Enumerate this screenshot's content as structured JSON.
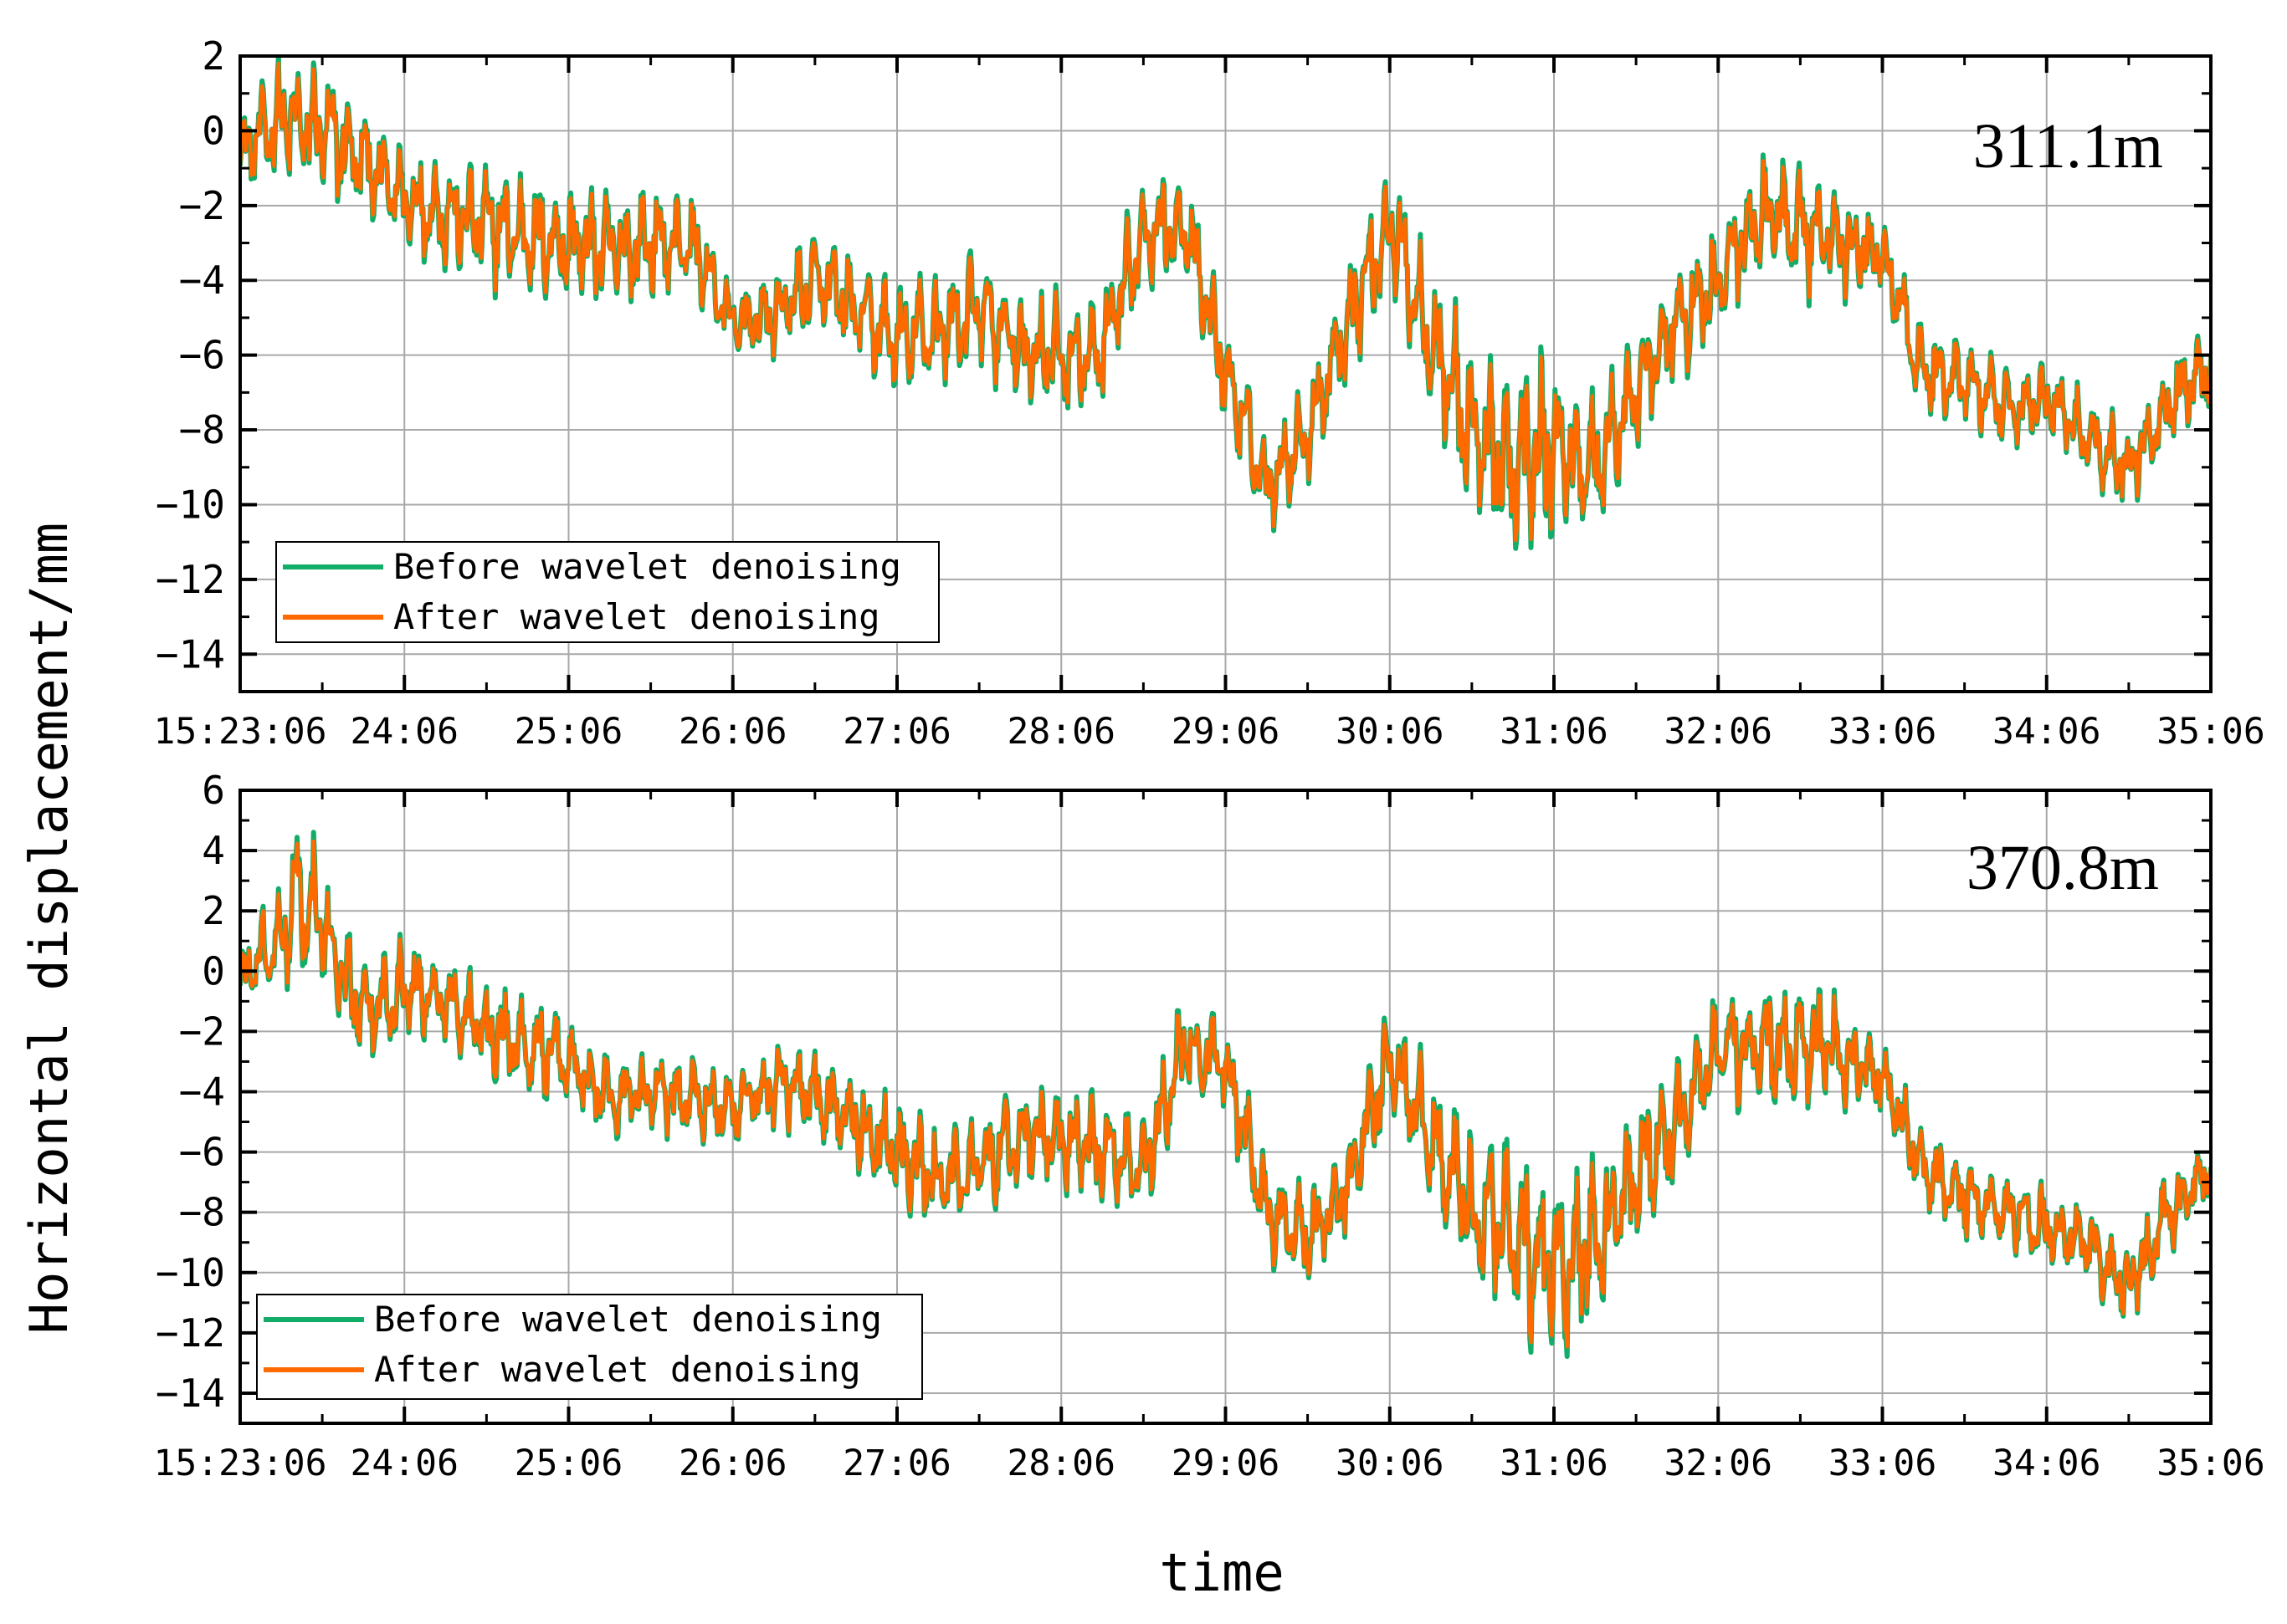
{
  "figure": {
    "ylabel": "Horizontal displacement/mm",
    "xlabel": "time"
  },
  "colors": {
    "before": "#12ad68",
    "after": "#ff6a00"
  },
  "chart_data": [
    {
      "type": "line",
      "annotation": "311.1m",
      "xlabel": "",
      "ylabel": "Horizontal displacement/mm",
      "x_unit": "minutes elapsed since 15:23:06",
      "xlim": [
        0,
        12
      ],
      "ylim": [
        -15,
        2
      ],
      "yticks": [
        2,
        0,
        -2,
        -4,
        -6,
        -8,
        -10,
        -12,
        -14
      ],
      "xticks": [
        0,
        1,
        2,
        3,
        4,
        5,
        6,
        7,
        8,
        9,
        10,
        11,
        12
      ],
      "xtick_labels": [
        "15:23:06",
        "24:06",
        "25:06",
        "26:06",
        "27:06",
        "28:06",
        "29:06",
        "30:06",
        "31:06",
        "32:06",
        "33:06",
        "34:06",
        "35:06"
      ],
      "legend": [
        "Before wavelet denoising",
        "After wavelet denoising"
      ],
      "legend_position": "bottom-left",
      "series": [
        {
          "name": "Before wavelet denoising",
          "x": [
            0,
            0.25,
            0.5,
            0.75,
            1,
            1.25,
            1.5,
            1.75,
            2,
            2.25,
            2.5,
            2.75,
            3,
            3.25,
            3.5,
            3.75,
            4,
            4.25,
            4.5,
            4.75,
            5,
            5.25,
            5.5,
            5.75,
            6,
            6.25,
            6.5,
            6.75,
            7,
            7.25,
            7.5,
            7.75,
            8,
            8.25,
            8.5,
            8.75,
            9,
            9.25,
            9.5,
            9.75,
            10,
            10.25,
            10.5,
            10.75,
            11,
            11.25,
            11.5,
            11.75,
            12
          ],
          "values": [
            -0.5,
            0.3,
            0,
            -0.8,
            -1.8,
            -2.2,
            -2.5,
            -2.8,
            -3.0,
            -3.2,
            -3.0,
            -3.0,
            -5.2,
            -4.9,
            -4.0,
            -4.8,
            -5.6,
            -5.3,
            -4.8,
            -5.8,
            -6.0,
            -6.0,
            -2.6,
            -2.5,
            -6.5,
            -9.5,
            -8.0,
            -5.0,
            -2.5,
            -5.5,
            -8.0,
            -9.0,
            -8.5,
            -9.0,
            -7.0,
            -5.0,
            -4.0,
            -2.2,
            -2.6,
            -3.0,
            -3.4,
            -6.5,
            -6.6,
            -7.5,
            -7.2,
            -8.2,
            -9.0,
            -7.2,
            -6.3
          ],
          "amplitudes": [
            1.0,
            1.5,
            1.6,
            1.5,
            1.4,
            1.4,
            1.5,
            1.4,
            1.5,
            1.4,
            1.3,
            1.2,
            1.0,
            1.1,
            1.2,
            1.3,
            1.4,
            1.5,
            1.5,
            1.5,
            1.5,
            1.4,
            1.5,
            1.4,
            1.3,
            1.2,
            1.3,
            1.5,
            1.6,
            1.7,
            2.3,
            3.0,
            2.2,
            1.9,
            1.8,
            1.6,
            1.5,
            1.5,
            1.7,
            1.4,
            1.2,
            1.1,
            1.1,
            1.0,
            1.0,
            1.0,
            1.1,
            1.1,
            1.0
          ]
        },
        {
          "name": "After wavelet denoising",
          "x": [
            0,
            0.25,
            0.5,
            0.75,
            1,
            1.25,
            1.5,
            1.75,
            2,
            2.25,
            2.5,
            2.75,
            3,
            3.25,
            3.5,
            3.75,
            4,
            4.25,
            4.5,
            4.75,
            5,
            5.25,
            5.5,
            5.75,
            6,
            6.25,
            6.5,
            6.75,
            7,
            7.25,
            7.5,
            7.75,
            8,
            8.25,
            8.5,
            8.75,
            9,
            9.25,
            9.5,
            9.75,
            10,
            10.25,
            10.5,
            10.75,
            11,
            11.25,
            11.5,
            11.75,
            12
          ],
          "values": [
            -0.5,
            0.3,
            0,
            -0.8,
            -1.8,
            -2.2,
            -2.5,
            -2.8,
            -3.0,
            -3.2,
            -3.0,
            -3.0,
            -5.2,
            -4.9,
            -4.0,
            -4.8,
            -5.6,
            -5.3,
            -4.8,
            -5.8,
            -6.0,
            -6.0,
            -2.6,
            -2.5,
            -6.5,
            -9.5,
            -8.0,
            -5.0,
            -2.5,
            -5.5,
            -8.0,
            -9.0,
            -8.5,
            -9.0,
            -7.0,
            -5.0,
            -4.0,
            -2.2,
            -2.6,
            -3.0,
            -3.4,
            -6.5,
            -6.6,
            -7.5,
            -7.2,
            -8.2,
            -9.0,
            -7.2,
            -6.3
          ],
          "amplitudes": [
            0.9,
            1.35,
            1.45,
            1.35,
            1.25,
            1.25,
            1.35,
            1.25,
            1.35,
            1.25,
            1.2,
            1.1,
            0.9,
            1.0,
            1.1,
            1.2,
            1.25,
            1.35,
            1.35,
            1.35,
            1.35,
            1.25,
            1.35,
            1.25,
            1.2,
            1.1,
            1.2,
            1.35,
            1.45,
            1.55,
            2.1,
            2.7,
            2.0,
            1.7,
            1.6,
            1.45,
            1.35,
            1.35,
            1.5,
            1.25,
            1.1,
            1.0,
            1.0,
            0.9,
            0.9,
            0.9,
            1.0,
            1.0,
            0.9
          ]
        }
      ]
    },
    {
      "type": "line",
      "annotation": "370.8m",
      "xlabel": "time",
      "ylabel": "Horizontal displacement/mm",
      "x_unit": "minutes elapsed since 15:23:06",
      "xlim": [
        0,
        12
      ],
      "ylim": [
        -15,
        6
      ],
      "yticks": [
        6,
        4,
        2,
        0,
        -2,
        -4,
        -6,
        -8,
        -10,
        -12,
        -14
      ],
      "xticks": [
        0,
        1,
        2,
        3,
        4,
        5,
        6,
        7,
        8,
        9,
        10,
        11,
        12
      ],
      "xtick_labels": [
        "15:23:06",
        "24:06",
        "25:06",
        "26:06",
        "27:06",
        "28:06",
        "29:06",
        "30:06",
        "31:06",
        "32:06",
        "33:06",
        "34:06",
        "35:06"
      ],
      "legend": [
        "Before wavelet denoising",
        "After wavelet denoising"
      ],
      "legend_position": "bottom-left",
      "series": [
        {
          "name": "Before wavelet denoising",
          "x": [
            0,
            0.25,
            0.35,
            0.5,
            0.75,
            1,
            1.25,
            1.5,
            1.75,
            2,
            2.25,
            2.5,
            2.75,
            3,
            3.25,
            3.5,
            3.75,
            4,
            4.25,
            4.5,
            4.75,
            5,
            5.25,
            5.5,
            5.75,
            6,
            6.25,
            6.5,
            6.75,
            7,
            7.25,
            7.5,
            7.75,
            8,
            8.25,
            8.5,
            8.75,
            9,
            9.25,
            9.5,
            9.75,
            10,
            10.25,
            10.5,
            10.75,
            11,
            11.25,
            11.5,
            11.75,
            12
          ],
          "values": [
            -0.3,
            1.0,
            2.5,
            1.5,
            -1.5,
            -0.5,
            -1.0,
            -2.0,
            -2.5,
            -3.0,
            -4.0,
            -4.0,
            -4.2,
            -4.5,
            -3.8,
            -4.0,
            -5.0,
            -6.0,
            -7.0,
            -6.5,
            -5.5,
            -5.5,
            -6.0,
            -6.5,
            -2.5,
            -3.0,
            -8.0,
            -9.0,
            -7.0,
            -3.0,
            -5.5,
            -8.0,
            -9.0,
            -10.0,
            -9.0,
            -7.0,
            -5.0,
            -2.5,
            -2.5,
            -2.5,
            -2.8,
            -3.5,
            -6.5,
            -7.5,
            -8.0,
            -8.5,
            -9.0,
            -10.5,
            -8.0,
            -6.5
          ],
          "amplitudes": [
            1.2,
            1.6,
            2.8,
            1.8,
            1.6,
            1.6,
            1.6,
            1.5,
            1.5,
            1.5,
            1.4,
            1.4,
            1.3,
            1.3,
            1.3,
            1.4,
            1.5,
            1.6,
            1.6,
            1.6,
            1.6,
            1.5,
            1.6,
            1.6,
            1.6,
            1.5,
            1.5,
            1.6,
            1.7,
            1.8,
            2.0,
            2.4,
            3.0,
            2.8,
            2.5,
            2.2,
            2.0,
            1.8,
            2.0,
            2.1,
            1.6,
            1.4,
            1.3,
            1.3,
            1.2,
            1.2,
            1.2,
            1.3,
            1.3,
            1.1
          ]
        },
        {
          "name": "After wavelet denoising",
          "x": [
            0,
            0.25,
            0.35,
            0.5,
            0.75,
            1,
            1.25,
            1.5,
            1.75,
            2,
            2.25,
            2.5,
            2.75,
            3,
            3.25,
            3.5,
            3.75,
            4,
            4.25,
            4.5,
            4.75,
            5,
            5.25,
            5.5,
            5.75,
            6,
            6.25,
            6.5,
            6.75,
            7,
            7.25,
            7.5,
            7.75,
            8,
            8.25,
            8.5,
            8.75,
            9,
            9.25,
            9.5,
            9.75,
            10,
            10.25,
            10.5,
            10.75,
            11,
            11.25,
            11.5,
            11.75,
            12
          ],
          "values": [
            -0.3,
            1.0,
            2.5,
            1.5,
            -1.5,
            -0.5,
            -1.0,
            -2.0,
            -2.5,
            -3.0,
            -4.0,
            -4.0,
            -4.2,
            -4.5,
            -3.8,
            -4.0,
            -5.0,
            -6.0,
            -7.0,
            -6.5,
            -5.5,
            -5.5,
            -6.0,
            -6.5,
            -2.5,
            -3.0,
            -8.0,
            -9.0,
            -7.0,
            -3.0,
            -5.5,
            -8.0,
            -9.0,
            -10.0,
            -9.0,
            -7.0,
            -5.0,
            -2.5,
            -2.5,
            -2.5,
            -2.8,
            -3.5,
            -6.5,
            -7.5,
            -8.0,
            -8.5,
            -9.0,
            -10.5,
            -8.0,
            -6.5
          ],
          "amplitudes": [
            1.1,
            1.45,
            2.5,
            1.6,
            1.45,
            1.45,
            1.45,
            1.35,
            1.35,
            1.35,
            1.25,
            1.25,
            1.2,
            1.2,
            1.2,
            1.25,
            1.35,
            1.45,
            1.45,
            1.45,
            1.45,
            1.35,
            1.45,
            1.45,
            1.45,
            1.35,
            1.35,
            1.45,
            1.55,
            1.6,
            1.8,
            2.15,
            2.7,
            2.5,
            2.25,
            2.0,
            1.8,
            1.6,
            1.8,
            1.9,
            1.45,
            1.25,
            1.2,
            1.2,
            1.1,
            1.1,
            1.1,
            1.2,
            1.2,
            1.0
          ]
        }
      ]
    }
  ]
}
